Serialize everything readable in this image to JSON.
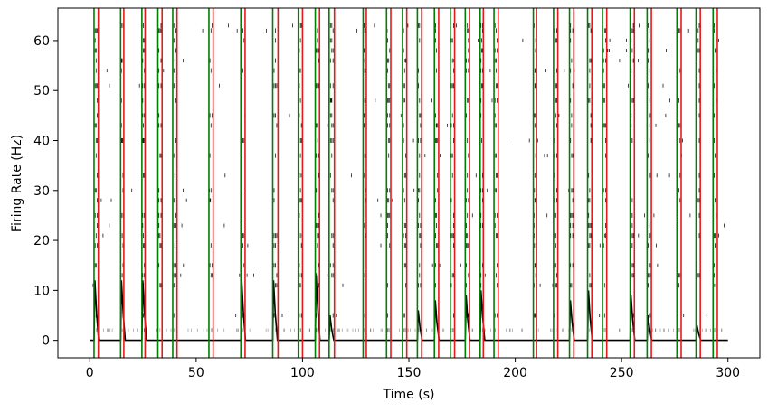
{
  "chart_data": {
    "type": "line",
    "title": "",
    "xlabel": "Time (s)",
    "ylabel": "Firing Rate (Hz)",
    "xlim": [
      -15,
      315
    ],
    "ylim": [
      -3.5,
      66.5
    ],
    "xticks": [
      0,
      50,
      100,
      150,
      200,
      250,
      300
    ],
    "yticks": [
      0,
      10,
      20,
      30,
      40,
      50,
      60
    ],
    "grid": false,
    "legend": "none",
    "colors": {
      "onset": "#007f00",
      "offset": "#e41a1c",
      "rate": "#000000",
      "raster": "#000000",
      "axes": "#000000"
    },
    "event_onsets_green": [
      2,
      14.5,
      24.5,
      32,
      39,
      56,
      71,
      86,
      98,
      106,
      112.5,
      128.5,
      139.5,
      147,
      154,
      162,
      169.5,
      176.5,
      183.5,
      190,
      208.5,
      218,
      225.5,
      234,
      241,
      254,
      262,
      276,
      285,
      293
    ],
    "event_offsets_red": [
      4,
      16,
      26,
      34,
      41,
      58,
      73,
      88.5,
      100,
      108,
      115,
      130,
      141.5,
      149,
      156,
      164,
      171.5,
      178.5,
      185,
      192,
      210,
      220,
      227.5,
      236,
      243,
      256,
      264,
      278,
      287,
      295
    ],
    "raster_rows_hz": [
      2,
      5,
      11,
      13,
      15,
      19,
      21,
      23,
      25,
      28,
      30,
      33,
      37,
      40,
      43,
      45,
      48,
      51,
      54,
      56,
      58,
      60,
      62,
      63
    ],
    "rate_peak_times": [
      2,
      14.5,
      24.5,
      71,
      86,
      106,
      112.5,
      154,
      162,
      176.5,
      183.5,
      225.5,
      234,
      254,
      262,
      285
    ],
    "rate_peak_values": [
      12,
      12,
      12,
      12,
      12,
      13,
      5,
      6,
      8,
      9,
      10,
      8,
      10,
      9,
      5,
      3
    ]
  }
}
